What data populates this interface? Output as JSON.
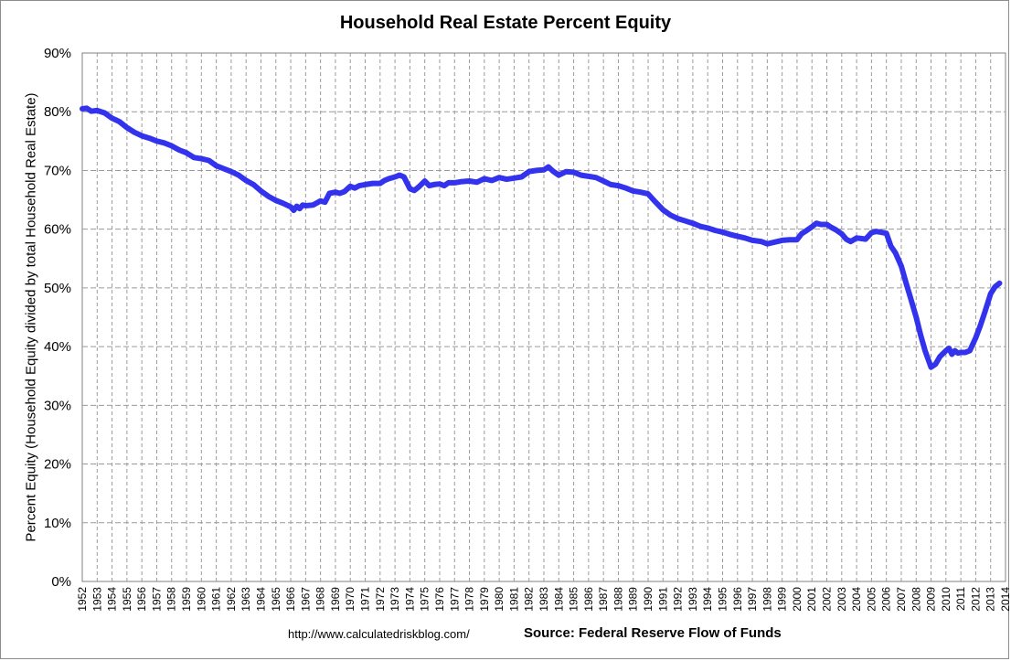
{
  "chart_data": {
    "type": "line",
    "title": "Household Real Estate Percent Equity",
    "xlabel": "",
    "ylabel": "Percent Equity (Household Equity divided by total Household Real Estate)",
    "ylim": [
      0,
      90
    ],
    "xlim": [
      1952,
      2014
    ],
    "yticks": [
      "0%",
      "10%",
      "20%",
      "30%",
      "40%",
      "50%",
      "60%",
      "70%",
      "80%",
      "90%"
    ],
    "xticks": [
      "1952",
      "1953",
      "1954",
      "1955",
      "1956",
      "1957",
      "1958",
      "1959",
      "1960",
      "1961",
      "1962",
      "1963",
      "1964",
      "1965",
      "1966",
      "1967",
      "1968",
      "1969",
      "1970",
      "1971",
      "1972",
      "1973",
      "1974",
      "1975",
      "1976",
      "1977",
      "1978",
      "1979",
      "1980",
      "1981",
      "1982",
      "1983",
      "1984",
      "1985",
      "1986",
      "1987",
      "1988",
      "1989",
      "1990",
      "1991",
      "1992",
      "1993",
      "1994",
      "1995",
      "1996",
      "1997",
      "1998",
      "1999",
      "2000",
      "2001",
      "2002",
      "2003",
      "2004",
      "2005",
      "2006",
      "2007",
      "2008",
      "2009",
      "2010",
      "2011",
      "2012",
      "2013",
      "2014"
    ],
    "grid": true,
    "line_color": "#3333ee",
    "series": [
      {
        "name": "Percent Equity",
        "x": [
          1952.0,
          1952.3,
          1952.6,
          1953.0,
          1953.5,
          1954.0,
          1954.5,
          1955.0,
          1955.5,
          1956.0,
          1956.5,
          1957.0,
          1957.5,
          1958.0,
          1958.5,
          1959.0,
          1959.5,
          1960.0,
          1960.5,
          1961.0,
          1961.5,
          1962.0,
          1962.5,
          1963.0,
          1963.5,
          1964.0,
          1964.5,
          1965.0,
          1965.5,
          1966.0,
          1966.2,
          1966.4,
          1966.6,
          1966.8,
          1967.0,
          1967.5,
          1968.0,
          1968.3,
          1968.6,
          1969.0,
          1969.3,
          1969.6,
          1970.0,
          1970.3,
          1970.6,
          1971.0,
          1971.5,
          1972.0,
          1972.3,
          1972.6,
          1973.0,
          1973.3,
          1973.6,
          1974.0,
          1974.3,
          1974.6,
          1975.0,
          1975.3,
          1975.6,
          1976.0,
          1976.3,
          1976.6,
          1977.0,
          1977.5,
          1978.0,
          1978.5,
          1979.0,
          1979.5,
          1980.0,
          1980.5,
          1981.0,
          1981.5,
          1982.0,
          1982.5,
          1983.0,
          1983.3,
          1983.6,
          1984.0,
          1984.5,
          1985.0,
          1985.5,
          1986.0,
          1986.5,
          1987.0,
          1987.5,
          1988.0,
          1988.5,
          1989.0,
          1989.5,
          1990.0,
          1990.5,
          1991.0,
          1991.5,
          1992.0,
          1992.5,
          1993.0,
          1993.5,
          1994.0,
          1994.5,
          1995.0,
          1995.5,
          1996.0,
          1996.5,
          1997.0,
          1997.3,
          1997.6,
          1998.0,
          1998.5,
          1999.0,
          1999.5,
          2000.0,
          2000.3,
          2000.6,
          2001.0,
          2001.3,
          2001.6,
          2002.0,
          2002.3,
          2002.6,
          2003.0,
          2003.3,
          2003.6,
          2004.0,
          2004.3,
          2004.6,
          2005.0,
          2005.3,
          2005.6,
          2006.0,
          2006.3,
          2006.6,
          2007.0,
          2007.3,
          2007.6,
          2008.0,
          2008.3,
          2008.6,
          2009.0,
          2009.3,
          2009.6,
          2010.0,
          2010.2,
          2010.4,
          2010.6,
          2010.8,
          2011.0,
          2011.3,
          2011.6,
          2012.0,
          2012.3,
          2012.6,
          2013.0,
          2013.3,
          2013.6
        ],
        "values": [
          80.5,
          80.6,
          80.1,
          80.2,
          79.8,
          78.9,
          78.3,
          77.3,
          76.5,
          75.9,
          75.5,
          75.0,
          74.7,
          74.2,
          73.5,
          73.0,
          72.2,
          72.0,
          71.7,
          70.8,
          70.3,
          69.8,
          69.2,
          68.3,
          67.6,
          66.5,
          65.6,
          64.9,
          64.4,
          63.8,
          63.2,
          63.9,
          63.5,
          64.1,
          64.0,
          64.1,
          64.8,
          64.6,
          66.1,
          66.3,
          66.1,
          66.4,
          67.3,
          67.0,
          67.4,
          67.6,
          67.8,
          67.8,
          68.3,
          68.6,
          68.9,
          69.2,
          68.9,
          66.9,
          66.6,
          67.2,
          68.2,
          67.4,
          67.6,
          67.7,
          67.4,
          67.9,
          67.9,
          68.1,
          68.2,
          68.0,
          68.6,
          68.3,
          68.8,
          68.5,
          68.7,
          68.9,
          69.8,
          70.0,
          70.1,
          70.6,
          69.9,
          69.2,
          69.8,
          69.7,
          69.2,
          69.0,
          68.8,
          68.2,
          67.6,
          67.4,
          67.0,
          66.5,
          66.3,
          66.0,
          64.6,
          63.3,
          62.4,
          61.8,
          61.4,
          61.0,
          60.5,
          60.2,
          59.8,
          59.5,
          59.1,
          58.8,
          58.5,
          58.1,
          58.0,
          57.9,
          57.5,
          57.8,
          58.1,
          58.2,
          58.2,
          59.2,
          59.7,
          60.4,
          61.0,
          60.8,
          60.8,
          60.3,
          59.9,
          59.2,
          58.3,
          57.9,
          58.5,
          58.4,
          58.3,
          59.4,
          59.6,
          59.5,
          59.3,
          57.1,
          56.0,
          53.7,
          51.0,
          48.5,
          45.0,
          42.0,
          39.3,
          36.5,
          37.0,
          38.3,
          39.3,
          39.7,
          38.7,
          39.3,
          38.9,
          39.0,
          39.0,
          39.3,
          41.5,
          43.5,
          45.8,
          49.0,
          50.2,
          50.8
        ]
      }
    ]
  },
  "footer": {
    "url": "http://www.calculatedriskblog.com/",
    "source": "Source: Federal Reserve Flow of Funds"
  }
}
